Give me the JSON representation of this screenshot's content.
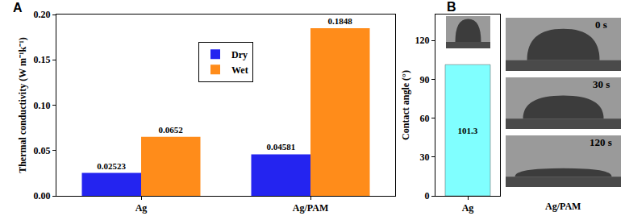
{
  "chart_data": [
    {
      "type": "bar",
      "title": "A",
      "categories": [
        "Ag",
        "Ag/PAM"
      ],
      "series": [
        {
          "name": "Dry",
          "color": "#2424f0",
          "values": [
            0.02523,
            0.04581
          ]
        },
        {
          "name": "Wet",
          "color": "#ff8c1a",
          "values": [
            0.0652,
            0.1848
          ]
        }
      ],
      "y_label": "Thermal conductivity (W m⁻¹k⁻¹)",
      "ylim": [
        0,
        0.2
      ],
      "yticks": [
        {
          "value": 0,
          "label": "0.00"
        },
        {
          "value": 0.05,
          "label": "0.05"
        },
        {
          "value": 0.1,
          "label": "0.10"
        },
        {
          "value": 0.15,
          "label": "0.15"
        },
        {
          "value": 0.2,
          "label": "0.20"
        }
      ],
      "legend": "top",
      "data_labels": true
    },
    {
      "type": "bar",
      "title": "B",
      "categories": [
        "Ag"
      ],
      "values": [
        101.3
      ],
      "color": "#80ffff",
      "y_label": "Contact angle (°)",
      "ylim": [
        0,
        140
      ],
      "yticks": [
        0,
        30,
        60,
        90,
        120
      ],
      "data_labels": true,
      "annotations": [
        "0 s",
        "30 s",
        "120 s",
        "Ag/PAM"
      ]
    }
  ]
}
